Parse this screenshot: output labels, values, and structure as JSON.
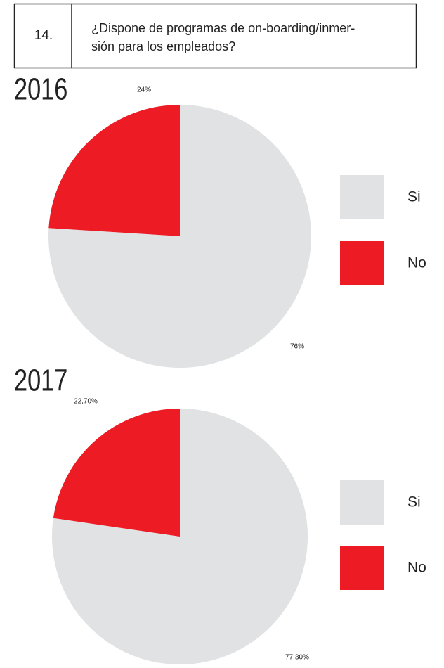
{
  "header": {
    "number": "14.",
    "question": [
      "¿Dispone de programas de on-boarding/inmer-",
      "sión para los empleados?"
    ]
  },
  "chart_data": [
    {
      "type": "pie",
      "title": "2016",
      "title_color": "#858585",
      "categories": [
        "Si",
        "No"
      ],
      "values": [
        76,
        24
      ],
      "value_labels": [
        "76%",
        "24%"
      ],
      "colors": [
        "#e0e2e3",
        "#ed1c24"
      ]
    },
    {
      "type": "pie",
      "title": "2017",
      "title_color": "#ed1c24",
      "categories": [
        "Si",
        "No"
      ],
      "values": [
        77.3,
        22.7
      ],
      "value_labels": [
        "77,30%",
        "22,70%"
      ],
      "colors": [
        "#e0e2e3",
        "#ed1c24"
      ]
    }
  ]
}
